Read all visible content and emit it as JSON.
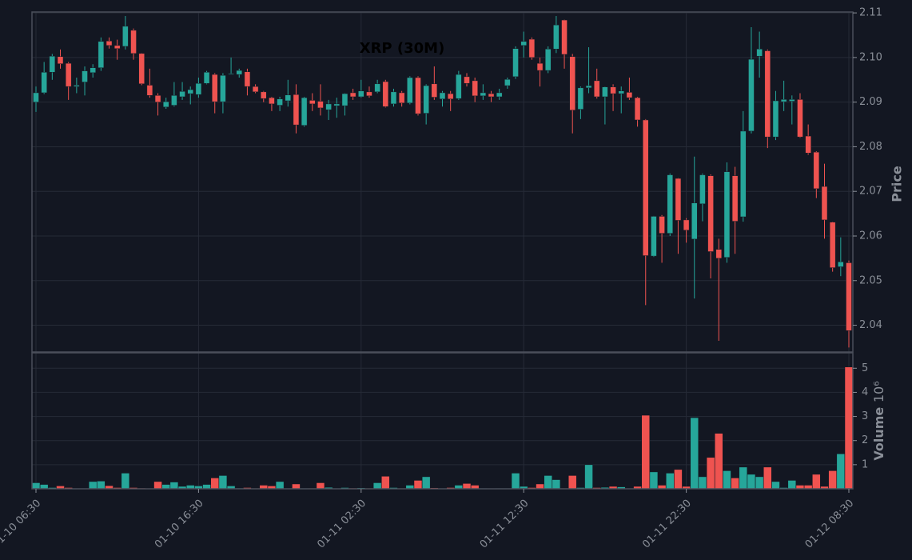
{
  "chart_data": {
    "type": "candlestick",
    "title": "XRP (30M)",
    "y_label": "Price",
    "volume_label": "Volume",
    "volume_exponent": "10⁶",
    "up_color": "#26a69a",
    "down_color": "#ef5350",
    "grid": true,
    "x": [
      "01-10 06:30",
      null,
      null,
      null,
      null,
      null,
      null,
      null,
      null,
      null,
      null,
      null,
      null,
      null,
      null,
      null,
      null,
      null,
      null,
      null,
      "01-10 16:30",
      null,
      null,
      null,
      null,
      null,
      null,
      null,
      null,
      null,
      null,
      null,
      null,
      null,
      null,
      null,
      null,
      null,
      null,
      null,
      "01-11 02:30",
      null,
      null,
      null,
      null,
      null,
      null,
      null,
      null,
      null,
      null,
      null,
      null,
      null,
      null,
      null,
      null,
      null,
      null,
      null,
      "01-11 12:30",
      null,
      null,
      null,
      null,
      null,
      null,
      null,
      null,
      null,
      null,
      null,
      null,
      null,
      null,
      null,
      null,
      null,
      null,
      null,
      "01-11 22:30",
      null,
      null,
      null,
      null,
      null,
      null,
      null,
      null,
      null,
      null,
      null,
      null,
      null,
      null,
      null,
      null,
      null,
      null,
      null,
      "01-12 08:30"
    ],
    "open": [
      2.09,
      2.0921,
      2.0967,
      2.1002,
      2.0987,
      2.0935,
      2.0945,
      2.0966,
      2.0977,
      2.1037,
      2.1027,
      2.1025,
      2.1061,
      2.1009,
      2.0938,
      2.0915,
      2.0889,
      2.0893,
      2.0912,
      2.0919,
      2.0917,
      2.0942,
      2.0962,
      2.0901,
      2.0963,
      2.0962,
      2.0968,
      2.0935,
      2.0923,
      2.091,
      2.0893,
      2.0903,
      2.0917,
      2.0848,
      2.0904,
      2.0902,
      2.0883,
      2.0892,
      2.0892,
      2.0921,
      2.0912,
      2.0923,
      2.0923,
      2.0946,
      2.0896,
      2.0921,
      2.0898,
      2.0955,
      2.0875,
      2.0941,
      2.0907,
      2.0919,
      2.0908,
      2.0957,
      2.0948,
      2.0914,
      2.0919,
      2.0912,
      2.0937,
      2.0957,
      2.1027,
      2.1041,
      2.0987,
      2.0971,
      2.1019,
      2.1084,
      2.1002,
      2.0884,
      2.0932,
      2.0948,
      2.0912,
      2.0934,
      2.0919,
      2.0922,
      2.091,
      2.086,
      2.0555,
      2.0644,
      2.0606,
      2.0729,
      2.0636,
      2.0593,
      2.0672,
      2.0735,
      2.057,
      2.0552,
      2.0735,
      2.0643,
      2.0835,
      2.1003,
      2.1015,
      2.0822,
      2.0901,
      2.0902,
      2.0906,
      2.0824,
      2.0788,
      2.0711,
      2.0631,
      2.0531,
      2.054
    ],
    "high": [
      2.0935,
      2.099,
      2.1008,
      2.1018,
      2.099,
      2.0955,
      2.098,
      2.0985,
      2.1045,
      2.1045,
      2.104,
      2.1093,
      2.1065,
      2.101,
      2.0975,
      2.092,
      2.091,
      2.0945,
      2.0945,
      2.0935,
      2.0955,
      2.097,
      2.0965,
      2.0965,
      2.1,
      2.0975,
      2.0975,
      2.094,
      2.0925,
      2.0912,
      2.0912,
      2.095,
      2.094,
      2.0912,
      2.092,
      2.094,
      2.0905,
      2.091,
      2.092,
      2.093,
      2.095,
      2.0935,
      2.095,
      2.095,
      2.093,
      2.0925,
      2.0958,
      2.0958,
      2.094,
      2.098,
      2.0925,
      2.0925,
      2.097,
      2.0965,
      2.0955,
      2.094,
      2.0925,
      2.093,
      2.0955,
      2.1025,
      2.1058,
      2.1045,
      2.1,
      2.1025,
      2.1093,
      2.1085,
      2.1008,
      2.0935,
      2.1023,
      2.0975,
      2.0935,
      2.094,
      2.0935,
      2.0955,
      2.0912,
      2.0862,
      2.0645,
      2.0647,
      2.074,
      2.073,
      2.064,
      2.0778,
      2.074,
      2.0738,
      2.0594,
      2.0765,
      2.0755,
      2.088,
      2.1068,
      2.1058,
      2.1018,
      2.0925,
      2.0948,
      2.0915,
      2.092,
      2.085,
      2.079,
      2.0762,
      2.0632,
      2.0597,
      2.0545
    ],
    "low": [
      2.0878,
      2.0918,
      2.095,
      2.0975,
      2.0905,
      2.092,
      2.0915,
      2.0955,
      2.097,
      2.102,
      2.0995,
      2.1018,
      2.0995,
      2.0938,
      2.091,
      2.087,
      2.0885,
      2.089,
      2.0905,
      2.0895,
      2.091,
      2.094,
      2.0875,
      2.0875,
      2.0962,
      2.0955,
      2.0915,
      2.092,
      2.09,
      2.088,
      2.088,
      2.089,
      2.083,
      2.0845,
      2.088,
      2.087,
      2.086,
      2.0865,
      2.087,
      2.0905,
      2.091,
      2.091,
      2.092,
      2.0888,
      2.089,
      2.089,
      2.0895,
      2.087,
      2.085,
      2.0905,
      2.089,
      2.088,
      2.0905,
      2.0935,
      2.09,
      2.0905,
      2.09,
      2.0905,
      2.093,
      2.0952,
      2.1,
      2.0995,
      2.0935,
      2.0965,
      2.101,
      2.0975,
      2.083,
      2.0862,
      2.092,
      2.0908,
      2.085,
      2.088,
      2.0875,
      2.0905,
      2.0845,
      2.0445,
      2.0553,
      2.054,
      2.06,
      2.056,
      2.0585,
      2.046,
      2.0633,
      2.0505,
      2.0365,
      2.054,
      2.056,
      2.0632,
      2.083,
      2.0955,
      2.0797,
      2.0815,
      2.088,
      2.085,
      2.082,
      2.0782,
      2.0685,
      2.0594,
      2.052,
      2.051,
      2.035
    ],
    "close": [
      2.0921,
      2.0967,
      2.1003,
      2.0986,
      2.0935,
      2.0938,
      2.097,
      2.0977,
      2.1036,
      2.1027,
      2.102,
      2.107,
      2.1009,
      2.0941,
      2.0915,
      2.09,
      2.0901,
      2.0915,
      2.0924,
      2.0928,
      2.0942,
      2.0967,
      2.0901,
      2.096,
      2.0964,
      2.0971,
      2.0935,
      2.0923,
      2.0908,
      2.0896,
      2.0907,
      2.0916,
      2.0849,
      2.091,
      2.0896,
      2.0887,
      2.0896,
      2.0896,
      2.0919,
      2.0912,
      2.0925,
      2.0914,
      2.0941,
      2.089,
      2.0923,
      2.0898,
      2.0955,
      2.0874,
      2.0937,
      2.0911,
      2.0921,
      2.0907,
      2.0962,
      2.0942,
      2.0914,
      2.0921,
      2.0912,
      2.0921,
      2.0951,
      2.102,
      2.1036,
      2.1,
      2.0971,
      2.1019,
      2.1073,
      2.1007,
      2.0882,
      2.0932,
      2.0937,
      2.0912,
      2.0934,
      2.0919,
      2.0925,
      2.091,
      2.086,
      2.0556,
      2.0644,
      2.0606,
      2.0737,
      2.0635,
      2.0613,
      2.0674,
      2.0737,
      2.0565,
      2.055,
      2.0744,
      2.0633,
      2.0835,
      2.0996,
      2.1019,
      2.0822,
      2.0903,
      2.0906,
      2.0906,
      2.0822,
      2.0786,
      2.0706,
      2.0636,
      2.0529,
      2.0542,
      2.0388
    ],
    "volume": [
      0.25,
      0.18,
      0.05,
      0.12,
      0.05,
      0.02,
      0.02,
      0.3,
      0.32,
      0.13,
      0.05,
      0.65,
      0.05,
      0.03,
      0.01,
      0.3,
      0.18,
      0.28,
      0.1,
      0.15,
      0.12,
      0.18,
      0.45,
      0.55,
      0.12,
      0.03,
      0.05,
      0.02,
      0.15,
      0.12,
      0.3,
      0.02,
      0.2,
      0.02,
      0.02,
      0.25,
      0.06,
      0.02,
      0.05,
      0.03,
      0.04,
      0.02,
      0.25,
      0.52,
      0.05,
      0.02,
      0.15,
      0.35,
      0.5,
      0.04,
      0.02,
      0.05,
      0.15,
      0.22,
      0.15,
      0.02,
      0.01,
      0.02,
      0.02,
      0.65,
      0.1,
      0.05,
      0.2,
      0.55,
      0.38,
      0.02,
      0.55,
      0.05,
      1.0,
      0.05,
      0.06,
      0.1,
      0.08,
      0.01,
      0.1,
      3.05,
      0.7,
      0.15,
      0.65,
      0.8,
      0.1,
      2.95,
      0.5,
      1.3,
      2.3,
      0.75,
      0.45,
      0.9,
      0.6,
      0.5,
      0.9,
      0.3,
      0.05,
      0.35,
      0.15,
      0.15,
      0.6,
      0.1,
      0.75,
      1.45,
      5.05
    ],
    "ylim": [
      2.034,
      2.1102
    ],
    "yticks": [
      2.04,
      2.05,
      2.06,
      2.07,
      2.08,
      2.09,
      {
        "value": 2.1,
        "label": "2.10"
      },
      2.11
    ],
    "volume_ylim": [
      0,
      5.64
    ],
    "volume_yticks": [
      1,
      2,
      3,
      4,
      5
    ]
  }
}
